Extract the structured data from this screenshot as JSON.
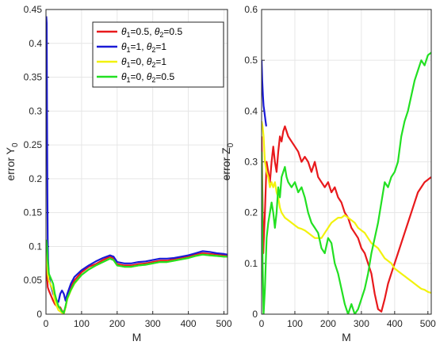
{
  "chart_data": [
    {
      "type": "line",
      "title": "",
      "xlabel": "M",
      "ylabel": "error Y",
      "ylabel_sub": "0",
      "xlim": [
        0,
        510
      ],
      "ylim": [
        0,
        0.45
      ],
      "xticks": [
        "0",
        "100",
        "200",
        "300",
        "400",
        "500"
      ],
      "yticks": [
        "0",
        "0.05",
        "0.1",
        "0.15",
        "0.2",
        "0.25",
        "0.3",
        "0.35",
        "0.4",
        "0.45"
      ],
      "grid": true,
      "legend_position": "top-right",
      "series": [
        {
          "name": "θ1=0.5, θ2=0.5",
          "legend": [
            "θ",
            "1",
            "=0.5, ",
            "θ",
            "2",
            "=0.5"
          ],
          "color": "#e8191c",
          "x": [
            1,
            3,
            5,
            8,
            12,
            16,
            20,
            25,
            30,
            35,
            40,
            45,
            50,
            55,
            60,
            70,
            80,
            100,
            120,
            140,
            160,
            180,
            190,
            200,
            220,
            240,
            260,
            280,
            300,
            320,
            340,
            360,
            380,
            400,
            420,
            440,
            460,
            480,
            500,
            510
          ],
          "y": [
            0.09,
            0.06,
            0.04,
            0.035,
            0.03,
            0.025,
            0.02,
            0.015,
            0.012,
            0.01,
            0.01,
            0.005,
            0.003,
            0.01,
            0.025,
            0.04,
            0.05,
            0.062,
            0.07,
            0.074,
            0.08,
            0.085,
            0.082,
            0.074,
            0.072,
            0.072,
            0.074,
            0.075,
            0.077,
            0.079,
            0.079,
            0.081,
            0.083,
            0.085,
            0.088,
            0.09,
            0.089,
            0.088,
            0.087,
            0.087
          ]
        },
        {
          "name": "θ1=1, θ2=1",
          "legend": [
            "θ",
            "1",
            "=1, ",
            "θ",
            "2",
            "=1"
          ],
          "color": "#1a1ad6",
          "x": [
            1,
            2,
            3,
            4,
            5,
            6,
            8,
            10,
            12,
            15,
            18,
            20,
            25,
            30,
            35,
            40,
            45,
            50,
            55,
            60,
            70,
            80,
            100,
            120,
            140,
            160,
            180,
            190,
            200,
            220,
            240,
            260,
            280,
            300,
            320,
            340,
            360,
            380,
            400,
            420,
            440,
            460,
            480,
            500,
            510
          ],
          "y": [
            0.44,
            0.43,
            0.3,
            0.18,
            0.11,
            0.08,
            0.06,
            0.05,
            0.045,
            0.04,
            0.035,
            0.03,
            0.025,
            0.02,
            0.018,
            0.03,
            0.035,
            0.03,
            0.02,
            0.03,
            0.045,
            0.055,
            0.065,
            0.072,
            0.078,
            0.083,
            0.087,
            0.085,
            0.077,
            0.075,
            0.075,
            0.077,
            0.078,
            0.08,
            0.082,
            0.082,
            0.083,
            0.085,
            0.087,
            0.09,
            0.093,
            0.092,
            0.09,
            0.089,
            0.088
          ]
        },
        {
          "name": "θ1=0, θ2=1",
          "legend": [
            "θ",
            "1",
            "=0, ",
            "θ",
            "2",
            "=1"
          ],
          "color": "#f2f20e",
          "x": [
            1,
            3,
            5,
            8,
            12,
            16,
            20,
            25,
            30,
            35,
            40,
            45,
            50,
            55,
            60,
            70,
            80,
            100,
            120,
            140,
            160,
            180,
            190,
            200,
            220,
            240,
            260,
            280,
            300,
            320,
            340,
            360,
            380,
            400,
            420,
            440,
            460,
            480,
            500,
            510
          ],
          "y": [
            0.1,
            0.08,
            0.06,
            0.05,
            0.045,
            0.04,
            0.035,
            0.02,
            0.012,
            0.006,
            0.004,
            0.002,
            0.0,
            0.01,
            0.022,
            0.035,
            0.045,
            0.058,
            0.066,
            0.072,
            0.077,
            0.082,
            0.08,
            0.072,
            0.07,
            0.07,
            0.072,
            0.073,
            0.075,
            0.077,
            0.077,
            0.079,
            0.081,
            0.083,
            0.086,
            0.088,
            0.087,
            0.086,
            0.085,
            0.085
          ]
        },
        {
          "name": "θ1=0, θ2=0.5",
          "legend": [
            "θ",
            "1",
            "=0, ",
            "θ",
            "2",
            "=0.5"
          ],
          "color": "#22e022",
          "x": [
            1,
            3,
            5,
            8,
            12,
            16,
            20,
            25,
            30,
            35,
            40,
            45,
            50,
            55,
            60,
            70,
            80,
            100,
            120,
            140,
            160,
            180,
            190,
            200,
            220,
            240,
            260,
            280,
            300,
            320,
            340,
            360,
            380,
            400,
            420,
            440,
            460,
            480,
            500,
            510
          ],
          "y": [
            0.11,
            0.1,
            0.08,
            0.06,
            0.055,
            0.05,
            0.045,
            0.03,
            0.02,
            0.012,
            0.008,
            0.004,
            0.002,
            0.012,
            0.024,
            0.036,
            0.046,
            0.058,
            0.066,
            0.072,
            0.077,
            0.082,
            0.08,
            0.072,
            0.07,
            0.07,
            0.072,
            0.073,
            0.075,
            0.077,
            0.077,
            0.079,
            0.081,
            0.083,
            0.086,
            0.088,
            0.087,
            0.086,
            0.085,
            0.085
          ]
        }
      ]
    },
    {
      "type": "line",
      "title": "",
      "xlabel": "M",
      "ylabel": "error Z",
      "ylabel_sub": "0",
      "xlim": [
        0,
        510
      ],
      "ylim": [
        0,
        0.6
      ],
      "xticks": [
        "0",
        "100",
        "200",
        "300",
        "400",
        "500"
      ],
      "yticks": [
        "0",
        "0.1",
        "0.2",
        "0.3",
        "0.4",
        "0.5",
        "0.6"
      ],
      "grid": true,
      "series": [
        {
          "name": "θ1=0.5, θ2=0.5",
          "color": "#e8191c",
          "x": [
            0,
            5,
            10,
            15,
            20,
            25,
            30,
            35,
            40,
            45,
            50,
            55,
            60,
            65,
            70,
            75,
            80,
            90,
            100,
            110,
            120,
            130,
            140,
            150,
            160,
            170,
            180,
            190,
            200,
            210,
            220,
            230,
            240,
            250,
            260,
            270,
            280,
            290,
            300,
            310,
            320,
            330,
            340,
            350,
            360,
            370,
            380,
            390,
            400,
            410,
            420,
            430,
            440,
            450,
            460,
            470,
            480,
            490,
            500,
            510
          ],
          "y": [
            0.35,
            0.12,
            0.2,
            0.3,
            0.28,
            0.26,
            0.3,
            0.33,
            0.3,
            0.28,
            0.32,
            0.35,
            0.34,
            0.36,
            0.37,
            0.36,
            0.35,
            0.34,
            0.33,
            0.32,
            0.3,
            0.31,
            0.3,
            0.28,
            0.3,
            0.27,
            0.26,
            0.25,
            0.26,
            0.24,
            0.25,
            0.23,
            0.22,
            0.2,
            0.19,
            0.17,
            0.16,
            0.15,
            0.13,
            0.12,
            0.1,
            0.08,
            0.04,
            0.01,
            0.005,
            0.03,
            0.06,
            0.08,
            0.1,
            0.12,
            0.14,
            0.16,
            0.18,
            0.2,
            0.22,
            0.24,
            0.25,
            0.26,
            0.265,
            0.27
          ]
        },
        {
          "name": "θ1=1, θ2=1",
          "color": "#1a1ad6",
          "x": [
            0,
            2,
            4,
            6,
            8,
            10,
            12,
            14
          ],
          "y": [
            0.5,
            0.46,
            0.43,
            0.41,
            0.4,
            0.39,
            0.38,
            0.37
          ]
        },
        {
          "name": "θ1=0, θ2=1",
          "color": "#f2f20e",
          "x": [
            0,
            3,
            6,
            10,
            15,
            20,
            25,
            30,
            35,
            40,
            45,
            50,
            55,
            60,
            70,
            80,
            90,
            100,
            110,
            120,
            130,
            140,
            150,
            160,
            170,
            180,
            190,
            200,
            210,
            220,
            230,
            240,
            250,
            260,
            270,
            280,
            290,
            300,
            310,
            320,
            330,
            340,
            350,
            360,
            370,
            380,
            390,
            400,
            410,
            420,
            430,
            440,
            450,
            460,
            470,
            480,
            490,
            500,
            510
          ],
          "y": [
            0.38,
            0.37,
            0.35,
            0.3,
            0.28,
            0.27,
            0.25,
            0.26,
            0.25,
            0.26,
            0.24,
            0.23,
            0.21,
            0.2,
            0.19,
            0.185,
            0.18,
            0.175,
            0.17,
            0.168,
            0.165,
            0.16,
            0.155,
            0.15,
            0.15,
            0.15,
            0.16,
            0.17,
            0.18,
            0.185,
            0.19,
            0.19,
            0.195,
            0.19,
            0.185,
            0.18,
            0.17,
            0.165,
            0.16,
            0.15,
            0.14,
            0.135,
            0.13,
            0.12,
            0.11,
            0.105,
            0.1,
            0.09,
            0.085,
            0.08,
            0.075,
            0.07,
            0.065,
            0.06,
            0.055,
            0.05,
            0.048,
            0.044,
            0.042
          ]
        },
        {
          "name": "θ1=0, θ2=0.5",
          "color": "#22e022",
          "x": [
            0,
            3,
            6,
            10,
            15,
            20,
            25,
            30,
            35,
            40,
            45,
            50,
            55,
            60,
            65,
            70,
            75,
            80,
            90,
            100,
            110,
            120,
            130,
            140,
            150,
            160,
            170,
            180,
            190,
            200,
            210,
            220,
            230,
            240,
            250,
            260,
            270,
            280,
            290,
            300,
            310,
            320,
            330,
            340,
            350,
            360,
            370,
            380,
            390,
            400,
            410,
            420,
            430,
            440,
            450,
            460,
            470,
            480,
            490,
            500,
            510
          ],
          "y": [
            0.32,
            0.1,
            0.0,
            0.05,
            0.15,
            0.18,
            0.2,
            0.22,
            0.2,
            0.17,
            0.2,
            0.25,
            0.23,
            0.27,
            0.28,
            0.29,
            0.27,
            0.26,
            0.25,
            0.26,
            0.24,
            0.25,
            0.23,
            0.2,
            0.18,
            0.17,
            0.16,
            0.13,
            0.12,
            0.15,
            0.14,
            0.1,
            0.08,
            0.05,
            0.02,
            0.0,
            0.02,
            0.0,
            0.01,
            0.03,
            0.05,
            0.08,
            0.12,
            0.15,
            0.18,
            0.22,
            0.26,
            0.25,
            0.27,
            0.28,
            0.3,
            0.35,
            0.38,
            0.4,
            0.43,
            0.46,
            0.48,
            0.5,
            0.49,
            0.51,
            0.515
          ]
        }
      ]
    }
  ]
}
